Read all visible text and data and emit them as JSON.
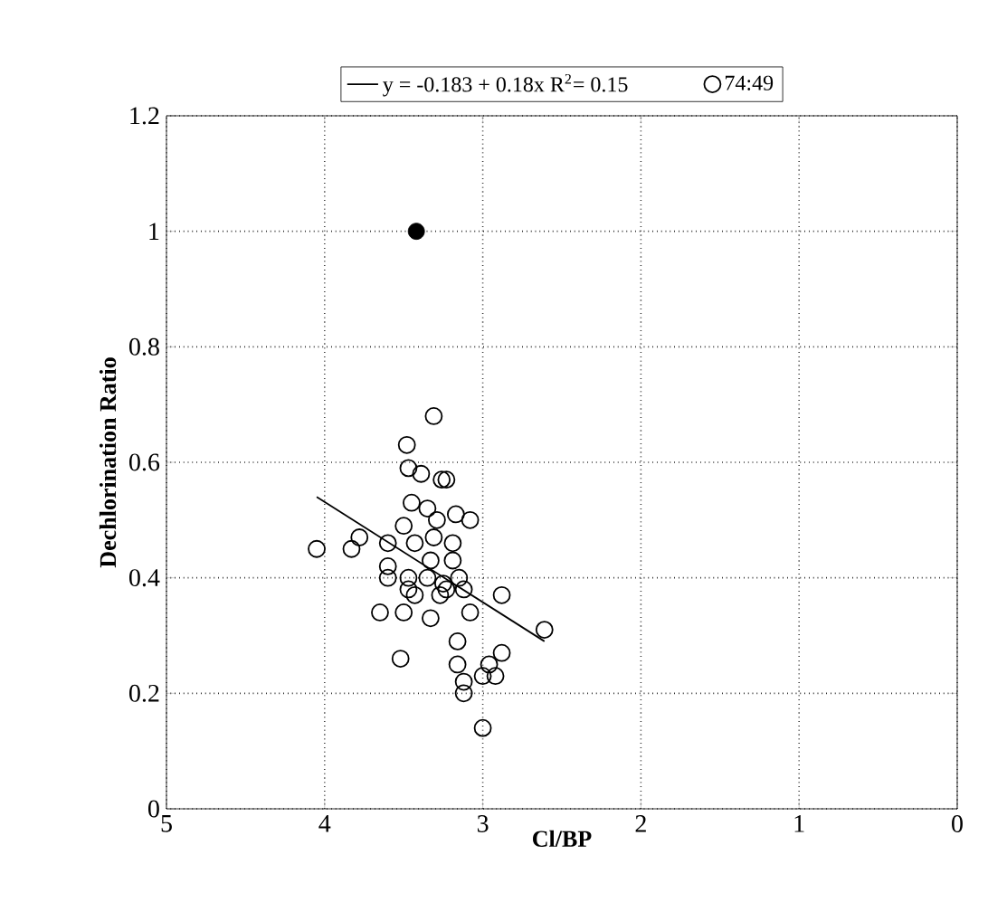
{
  "chart_data": {
    "type": "scatter",
    "xlabel": "Cl/BP",
    "ylabel": "Dechlorination Ratio",
    "xlim": [
      5,
      0
    ],
    "xticks": [
      5,
      4,
      3,
      2,
      1,
      0
    ],
    "ylim": [
      0,
      1.2
    ],
    "yticks": [
      0,
      0.2,
      0.4,
      0.6,
      0.8,
      1,
      1.2
    ],
    "grid": true,
    "legend": "top",
    "series": [
      {
        "type": "line",
        "name": "y = -0.183 + 0.18x   R$^{2}$= 0.15",
        "color": "#000000",
        "marker": "none",
        "x": [
          4.05,
          2.61
        ],
        "values": [
          0.54,
          0.29
        ]
      },
      {
        "type": "scatter",
        "name": "74:49",
        "color": "#000000",
        "marker": "circle",
        "x": [
          3.31,
          3.48,
          3.47,
          3.39,
          3.26,
          3.23,
          3.45,
          3.35,
          3.17,
          3.08,
          3.29,
          3.5,
          3.78,
          3.83,
          4.05,
          3.6,
          3.43,
          3.31,
          3.19,
          3.33,
          3.19,
          3.6,
          3.6,
          3.47,
          3.35,
          3.25,
          3.15,
          3.12,
          3.27,
          3.43,
          2.88,
          3.65,
          3.5,
          3.33,
          3.08,
          2.61,
          3.52,
          3.16,
          3.16,
          2.88,
          2.96,
          2.92,
          3.0,
          3.12,
          3.12,
          3.0,
          3.47,
          3.23
        ],
        "values": [
          0.68,
          0.63,
          0.59,
          0.58,
          0.57,
          0.57,
          0.53,
          0.52,
          0.51,
          0.5,
          0.5,
          0.49,
          0.47,
          0.45,
          0.45,
          0.46,
          0.46,
          0.47,
          0.46,
          0.43,
          0.43,
          0.42,
          0.4,
          0.4,
          0.4,
          0.39,
          0.4,
          0.38,
          0.37,
          0.37,
          0.37,
          0.34,
          0.34,
          0.33,
          0.34,
          0.31,
          0.26,
          0.29,
          0.25,
          0.27,
          0.25,
          0.23,
          0.23,
          0.22,
          0.2,
          0.14,
          0.38,
          0.38
        ]
      },
      {
        "type": "scatter",
        "color": "#000000",
        "marker": "circle",
        "x": [
          3.42
        ],
        "values": [
          1.0
        ]
      }
    ]
  }
}
